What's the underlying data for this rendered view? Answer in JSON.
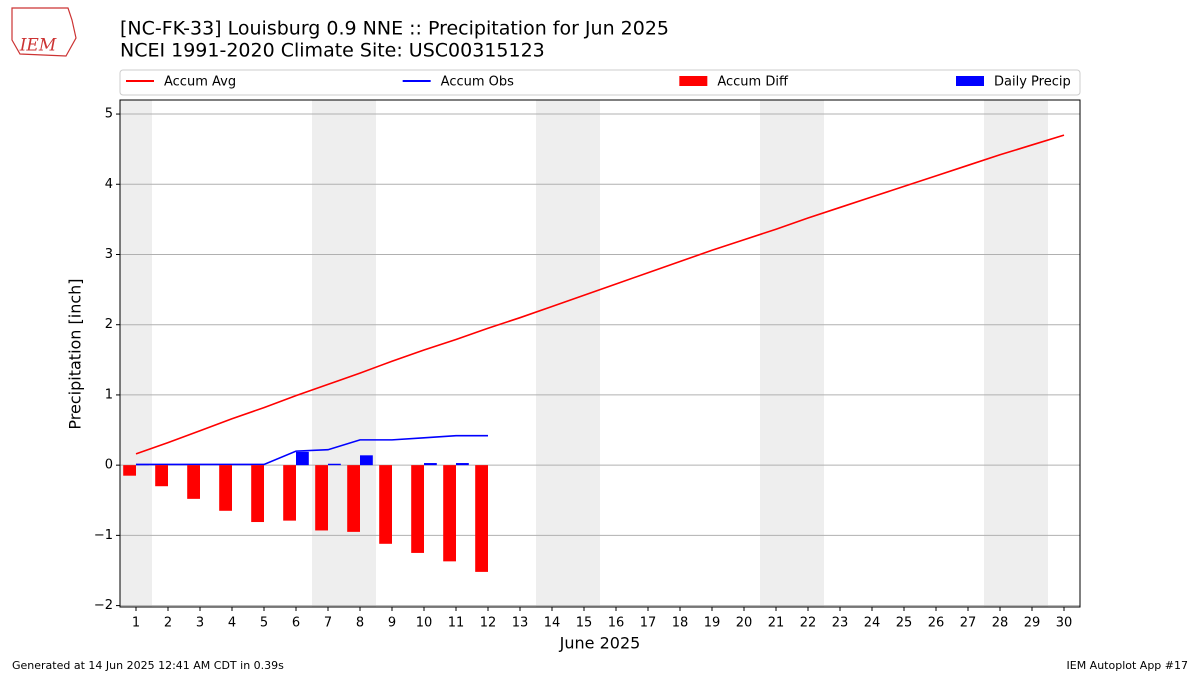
{
  "logo": "IEM",
  "chart_data": {
    "type": "combo",
    "title": "[NC-FK-33] Louisburg 0.9 NNE :: Precipitation for Jun 2025",
    "subtitle": "NCEI 1991-2020 Climate Site: USC00315123",
    "x_label": "June 2025",
    "y_label": "Precipitation [inch]",
    "x": [
      1,
      2,
      3,
      4,
      5,
      6,
      7,
      8,
      9,
      10,
      11,
      12,
      13,
      14,
      15,
      16,
      17,
      18,
      19,
      20,
      21,
      22,
      23,
      24,
      25,
      26,
      27,
      28,
      29,
      30
    ],
    "xlim": [
      0.5,
      30.5
    ],
    "xticks": [
      1,
      2,
      3,
      4,
      5,
      6,
      7,
      8,
      9,
      10,
      11,
      12,
      13,
      14,
      15,
      16,
      17,
      18,
      19,
      20,
      21,
      22,
      23,
      24,
      25,
      26,
      27,
      28,
      29,
      30
    ],
    "ylim": [
      -2.02,
      5.2
    ],
    "yticks": [
      {
        "value": -2,
        "label": "−2"
      },
      {
        "value": -1,
        "label": "−1"
      },
      0,
      1,
      2,
      3,
      4,
      5
    ],
    "grid": true,
    "legend": "top",
    "shaded_x": [
      1,
      7,
      8,
      14,
      15,
      21,
      22,
      28,
      29
    ],
    "series": [
      {
        "name": "Accum Avg",
        "color": "#ff0000",
        "kind": "line",
        "values": [
          0.16,
          0.32,
          0.49,
          0.66,
          0.82,
          0.99,
          1.15,
          1.31,
          1.48,
          1.64,
          1.79,
          1.95,
          2.1,
          2.26,
          2.42,
          2.58,
          2.74,
          2.9,
          3.06,
          3.21,
          3.36,
          3.52,
          3.67,
          3.82,
          3.97,
          4.12,
          4.27,
          4.42,
          4.56,
          4.7
        ]
      },
      {
        "name": "Accum Obs",
        "color": "#0000ff",
        "kind": "line",
        "values": [
          0.01,
          0.01,
          0.01,
          0.01,
          0.01,
          0.2,
          0.22,
          0.36,
          0.36,
          0.39,
          0.42,
          0.42,
          null,
          null,
          null,
          null,
          null,
          null,
          null,
          null,
          null,
          null,
          null,
          null,
          null,
          null,
          null,
          null,
          null,
          null
        ]
      },
      {
        "name": "Accum Diff",
        "color": "#ff0000",
        "kind": "bar",
        "values": [
          -0.15,
          -0.3,
          -0.48,
          -0.65,
          -0.81,
          -0.79,
          -0.93,
          -0.95,
          -1.12,
          -1.25,
          -1.37,
          -1.52,
          null,
          null,
          null,
          null,
          null,
          null,
          null,
          null,
          null,
          null,
          null,
          null,
          null,
          null,
          null,
          null,
          null,
          null
        ]
      },
      {
        "name": "Daily Precip",
        "color": "#0000ff",
        "kind": "bar",
        "values": [
          0.01,
          0,
          0,
          0,
          0,
          0.19,
          0.02,
          0.14,
          0,
          0.03,
          0.03,
          0,
          null,
          null,
          null,
          null,
          null,
          null,
          null,
          null,
          null,
          null,
          null,
          null,
          null,
          null,
          null,
          null,
          null,
          null
        ]
      }
    ]
  },
  "footer": {
    "left": "Generated at 14 Jun 2025 12:41 AM CDT in 0.39s",
    "right": "IEM Autoplot App #17"
  }
}
